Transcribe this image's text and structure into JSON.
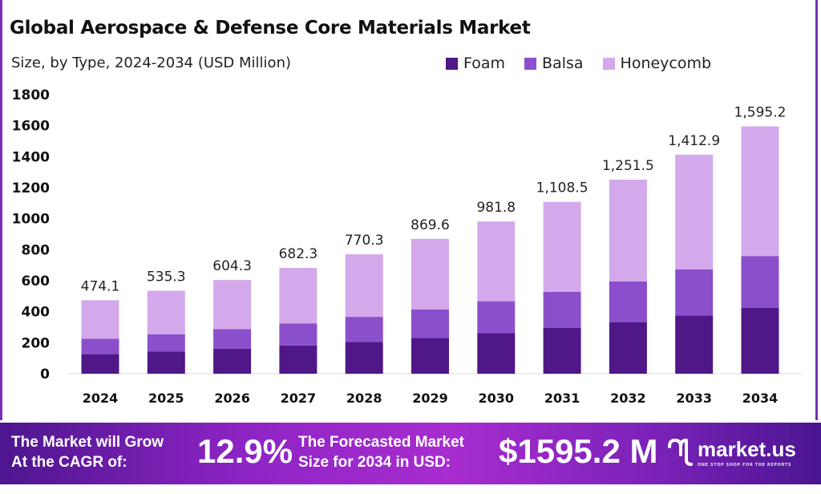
{
  "chart_data": {
    "type": "stacked-bar",
    "title": "Global Aerospace & Defense Core Materials Market",
    "subtitle": "Size, by Type, 2024-2034 (USD Million)",
    "categories": [
      "2024",
      "2025",
      "2026",
      "2027",
      "2028",
      "2029",
      "2030",
      "2031",
      "2032",
      "2033",
      "2034"
    ],
    "series": [
      {
        "name": "Foam",
        "color": "#4f1787",
        "values": [
          126.1,
          142.4,
          160.7,
          181.5,
          204.9,
          231.3,
          261.2,
          294.9,
          332.9,
          375.8,
          424.3
        ]
      },
      {
        "name": "Balsa",
        "color": "#8b4fcb",
        "values": [
          99.6,
          112.4,
          126.9,
          143.3,
          161.8,
          182.6,
          206.2,
          232.8,
          262.8,
          296.7,
          335.0
        ]
      },
      {
        "name": "Honeycomb",
        "color": "#d4a9ec",
        "values": [
          248.4,
          280.5,
          316.7,
          357.5,
          403.6,
          455.7,
          514.4,
          580.8,
          655.8,
          740.4,
          835.9
        ]
      }
    ],
    "totals": [
      "474.1",
      "535.3",
      "604.3",
      "682.3",
      "770.3",
      "869.6",
      "981.8",
      "1,108.5",
      "1,251.5",
      "1,412.9",
      "1,595.2"
    ],
    "ylim": [
      0,
      1800
    ],
    "yticks": [
      "0",
      "200",
      "400",
      "600",
      "800",
      "1000",
      "1200",
      "1400",
      "1600",
      "1800"
    ],
    "grid": false,
    "legend": "top-right"
  },
  "banner": {
    "cagr_label_1": "The Market will Grow",
    "cagr_label_2": "At the CAGR of:",
    "cagr_value": "12.9%",
    "forecast_label_1": "The Forecasted Market",
    "forecast_label_2": "Size for 2034 in USD:",
    "forecast_value": "$1595.2 M",
    "logo_text": "market.us",
    "logo_tagline": "ONE STOP SHOP FOR THE REPORTS"
  }
}
